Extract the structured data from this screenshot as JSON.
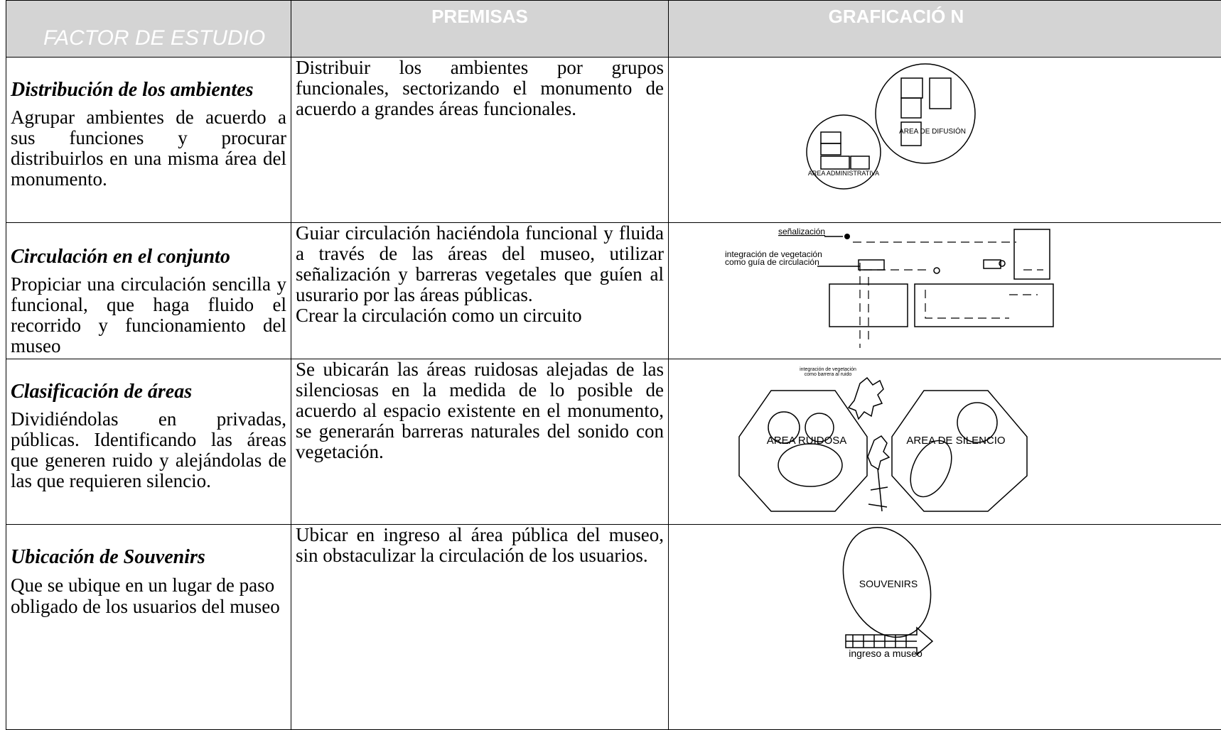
{
  "header": {
    "factor": "FACTOR DE ESTUDIO",
    "premisas": "PREMISAS",
    "graficacion": "GRAFICACIÓ N"
  },
  "rows": [
    {
      "title": "Distribución de los ambientes",
      "description": "Agrupar ambientes de acuerdo a sus funciones y procurar distribuirlos en una misma área del monumento.",
      "premises": [
        "Distribuir los ambientes por grupos funcionales, sectorizando el monumento de acuerdo a grandes áreas funcionales."
      ],
      "graphic": [
        "AREA DE DIFUSIÓN",
        "AREA ADMINISTRATIVA"
      ]
    },
    {
      "title": "Circulación en el conjunto",
      "description": "Propiciar una circulación sencilla y funcional, que haga fluido el recorrido y funcionamiento del museo",
      "premises": [
        "Guiar circulación haciéndola funcional y fluida a través de las áreas del museo, utilizar señalización y barreras vegetales que guíen al usurario por las áreas públicas.",
        "Crear la circulación como un circuito"
      ],
      "graphic": [
        "señalización",
        "integración de vegetación",
        "como guía de circulación"
      ]
    },
    {
      "title": "Clasificación de áreas",
      "description": "Dividiéndolas en privadas, públicas. Identificando las áreas que generen ruido y alejándolas de las que requieren silencio.",
      "premises": [
        "Se ubicarán las áreas ruidosas alejadas de las silenciosas en la medida de lo posible de acuerdo al espacio existente en el monumento, se generarán barreras naturales del sonido con vegetación."
      ],
      "graphic": [
        "integración de vegetación",
        "como barrera al ruido",
        "AREA RUIDOSA",
        "AREA DE SILENCIO"
      ]
    },
    {
      "title": "Ubicación de Souvenirs",
      "description": "Que se ubique en un lugar de paso obligado de los usuarios del museo",
      "premises": [
        "Ubicar en ingreso al área pública del museo, sin obstaculizar la circulación de los usuarios."
      ],
      "graphic": [
        "SOUVENIRS",
        "ingreso a museo"
      ]
    }
  ]
}
